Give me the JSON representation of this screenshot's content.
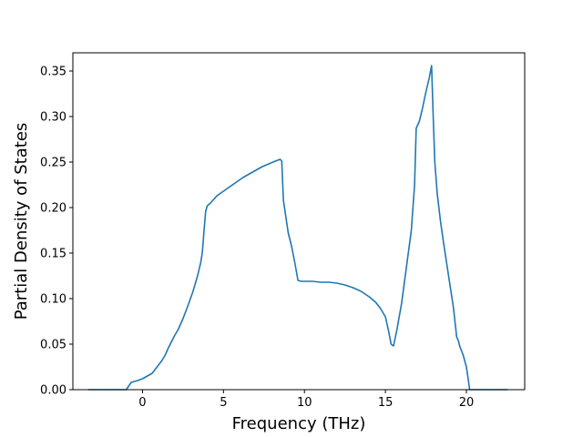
{
  "chart_data": {
    "type": "line",
    "title": "",
    "xlabel": "Frequency (THz)",
    "ylabel": "Partial Density of States",
    "xlim": [
      -4.3,
      23.6
    ],
    "ylim": [
      0.0,
      0.37
    ],
    "grid": false,
    "legend": "none",
    "x_ticks": [
      0,
      5,
      10,
      15,
      20
    ],
    "x_tick_labels": [
      "0",
      "5",
      "10",
      "15",
      "20"
    ],
    "y_ticks": [
      0.0,
      0.05,
      0.1,
      0.15,
      0.2,
      0.25,
      0.3,
      0.35
    ],
    "y_tick_labels": [
      "0.00",
      "0.05",
      "0.10",
      "0.15",
      "0.20",
      "0.25",
      "0.30",
      "0.35"
    ],
    "colors": {
      "line": "#1f77b4",
      "axes": "#000000",
      "background": "#ffffff"
    },
    "series": [
      {
        "x": [
          -3.3,
          -1.0,
          -0.85,
          -0.7,
          -0.5,
          -0.3,
          0.0,
          0.3,
          0.6,
          0.9,
          1.2,
          1.4,
          1.6,
          1.8,
          2.0,
          2.2,
          2.5,
          2.8,
          3.1,
          3.4,
          3.6,
          3.7,
          3.8,
          3.9,
          4.0,
          4.2,
          4.4,
          4.6,
          5.0,
          5.4,
          5.8,
          6.2,
          6.6,
          7.0,
          7.4,
          7.8,
          8.2,
          8.5,
          8.6,
          8.7,
          8.85,
          9.0,
          9.2,
          9.4,
          9.6,
          9.8,
          10.0,
          10.5,
          11.0,
          11.5,
          12.0,
          12.5,
          13.0,
          13.5,
          14.0,
          14.4,
          14.7,
          15.0,
          15.2,
          15.35,
          15.5,
          15.7,
          16.0,
          16.3,
          16.6,
          16.8,
          16.9,
          17.1,
          17.3,
          17.5,
          17.7,
          17.85,
          17.95,
          18.05,
          18.2,
          18.4,
          18.6,
          18.9,
          19.2,
          19.4,
          19.5,
          19.6,
          19.8,
          20.0,
          20.1,
          20.2,
          20.3,
          20.6,
          22.5
        ],
        "y": [
          0.0,
          0.0,
          0.004,
          0.008,
          0.009,
          0.01,
          0.012,
          0.015,
          0.018,
          0.025,
          0.032,
          0.038,
          0.046,
          0.053,
          0.06,
          0.066,
          0.078,
          0.092,
          0.107,
          0.125,
          0.14,
          0.152,
          0.175,
          0.196,
          0.202,
          0.205,
          0.209,
          0.213,
          0.218,
          0.223,
          0.228,
          0.233,
          0.237,
          0.241,
          0.245,
          0.248,
          0.251,
          0.253,
          0.251,
          0.208,
          0.19,
          0.172,
          0.158,
          0.14,
          0.12,
          0.119,
          0.119,
          0.119,
          0.118,
          0.118,
          0.117,
          0.115,
          0.112,
          0.108,
          0.102,
          0.096,
          0.089,
          0.08,
          0.064,
          0.05,
          0.048,
          0.065,
          0.095,
          0.135,
          0.175,
          0.225,
          0.287,
          0.295,
          0.31,
          0.327,
          0.342,
          0.356,
          0.3,
          0.25,
          0.215,
          0.185,
          0.16,
          0.125,
          0.09,
          0.058,
          0.054,
          0.047,
          0.038,
          0.025,
          0.013,
          0.0,
          0.0,
          0.0,
          0.0
        ]
      }
    ]
  }
}
